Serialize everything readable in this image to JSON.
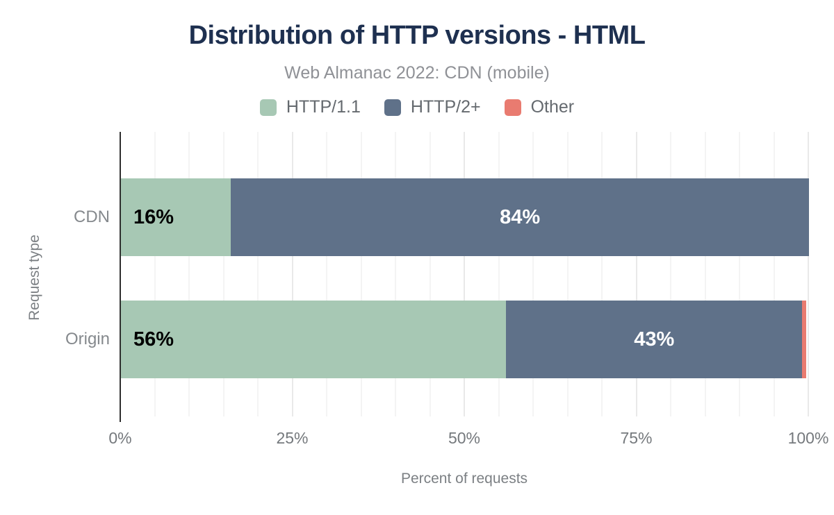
{
  "chart": {
    "title": "Distribution of HTTP versions - HTML",
    "subtitle": "Web Almanac 2022: CDN (mobile)",
    "x_axis_title": "Percent of requests",
    "y_axis_title": "Request type"
  },
  "legend": [
    {
      "label": "HTTP/1.1",
      "color": "#a7c8b4"
    },
    {
      "label": "HTTP/2+",
      "color": "#5f7189"
    },
    {
      "label": "Other",
      "color": "#e97b70"
    }
  ],
  "chart_data": {
    "type": "bar",
    "orientation": "horizontal",
    "stacked": true,
    "title": "Distribution of HTTP versions - HTML",
    "subtitle": "Web Almanac 2022: CDN (mobile)",
    "xlabel": "Percent of requests",
    "ylabel": "Request type",
    "xlim": [
      0,
      100
    ],
    "x_ticks": [
      "0%",
      "25%",
      "50%",
      "75%",
      "100%"
    ],
    "x_tick_values": [
      0,
      25,
      50,
      75,
      100
    ],
    "minor_grid_interval": 5,
    "grid": true,
    "legend_position": "top",
    "categories": [
      "CDN",
      "Origin"
    ],
    "series": [
      {
        "name": "HTTP/1.1",
        "color": "#a7c8b4",
        "label_color": "#000000",
        "values": [
          16,
          56
        ]
      },
      {
        "name": "HTTP/2+",
        "color": "#5f7189",
        "label_color": "#ffffff",
        "values": [
          84,
          43
        ]
      },
      {
        "name": "Other",
        "color": "#e97b70",
        "label_color": "#ffffff",
        "values": [
          0,
          0.6
        ]
      }
    ],
    "data_labels": [
      [
        "16%",
        "84%",
        ""
      ],
      [
        "56%",
        "43%",
        ""
      ]
    ]
  },
  "colors": {
    "title": "#1e3050",
    "subtitle_text": "#8f9196",
    "axis_text": "#7c8084",
    "axis_line": "#2e2e2e",
    "minor_gridline": "#f4f4f4",
    "major_gridline": "#e9e9e9",
    "background": "#ffffff"
  }
}
